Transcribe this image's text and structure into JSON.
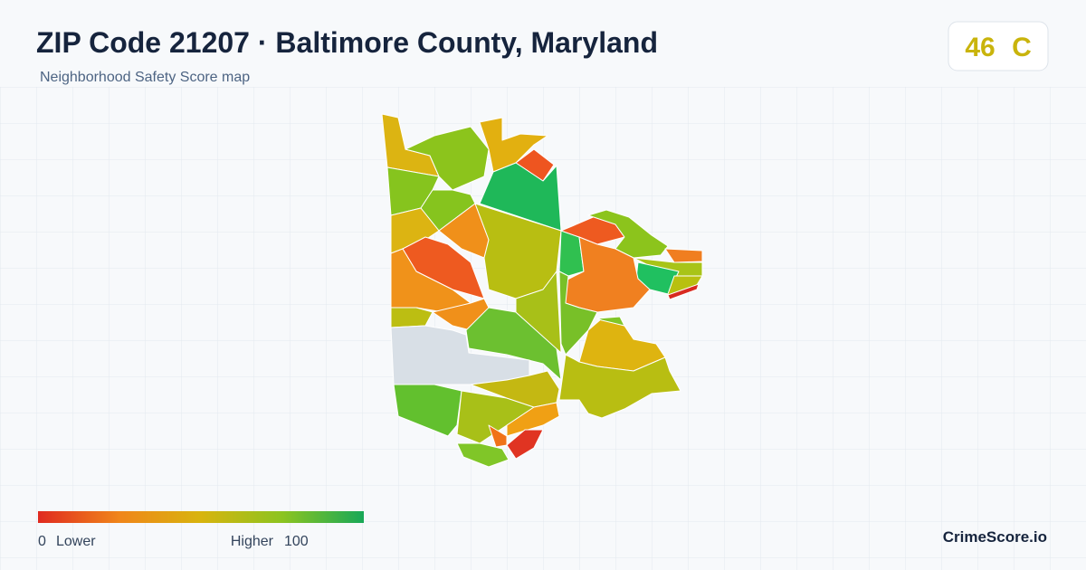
{
  "header": {
    "title": "ZIP Code 21207 · Baltimore County, Maryland",
    "subtitle": "Neighborhood Safety Score map"
  },
  "score": {
    "value": 46,
    "grade": "C"
  },
  "legend": {
    "min": 0,
    "min_label": "Lower",
    "max_label": "Higher",
    "max": 100
  },
  "brand": "CrimeScore.io"
}
